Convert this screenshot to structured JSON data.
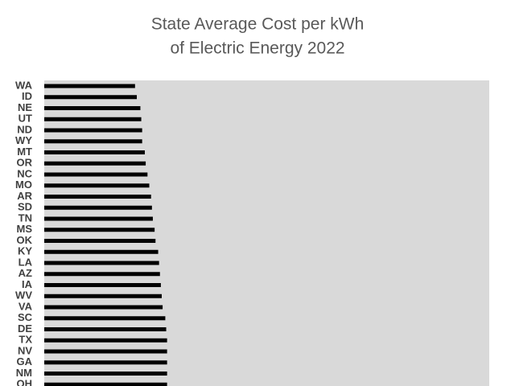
{
  "chart_data": {
    "type": "barh",
    "title": [
      "State Average Cost per kWh",
      "of Electric Energy 2022"
    ],
    "categories": [
      "WA",
      "ID",
      "NE",
      "UT",
      "ND",
      "WY",
      "MT",
      "OR",
      "NC",
      "MO",
      "AR",
      "SD",
      "TN",
      "MS",
      "OK",
      "KY",
      "LA",
      "AZ",
      "IA",
      "WV",
      "VA",
      "SC",
      "DE",
      "TX",
      "NV",
      "GA",
      "NM",
      "OH"
    ],
    "values": [
      10.2,
      10.4,
      10.8,
      10.9,
      11.0,
      11.0,
      11.3,
      11.4,
      11.6,
      11.8,
      12.0,
      12.1,
      12.2,
      12.4,
      12.5,
      12.8,
      12.9,
      13.0,
      13.1,
      13.2,
      13.3,
      13.6,
      13.7,
      13.8,
      13.8,
      13.8,
      13.8,
      13.8
    ],
    "color": "#000000",
    "plot_background": "#d9d9d9",
    "xlim": [
      0,
      50
    ]
  }
}
